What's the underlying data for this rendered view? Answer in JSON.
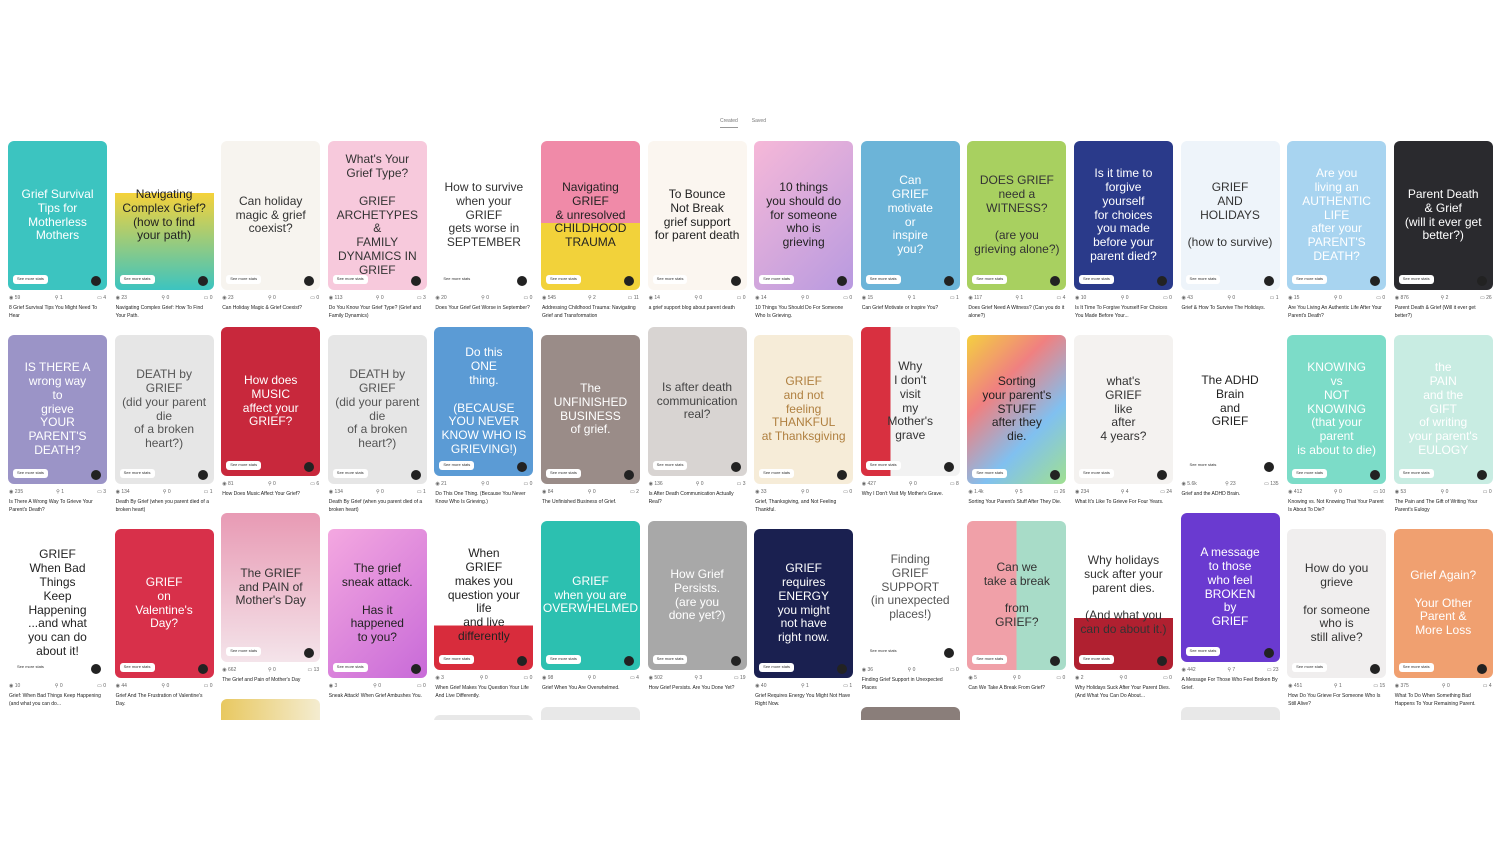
{
  "tabs": [
    {
      "label": "Created",
      "active": true
    },
    {
      "label": "Saved",
      "active": false
    }
  ],
  "see_more_label": "See more stats",
  "icons": {
    "views": "eye-icon",
    "saves": "pin-icon",
    "comments": "comment-icon"
  },
  "columns": [
    [
      {
        "img": "Grief Survival\nTips for\nMotherless Mothers",
        "bg": "#3cc4c0",
        "fg": "#fff",
        "views": "59",
        "saves": "1",
        "comments": "4",
        "title": "8 Grief Survival Tips You Might Need To Hear"
      },
      {
        "img": "IS THERE A\nwrong way\nto\ngrieve\nYOUR PARENT'S DEATH?",
        "bg": "#9b94c7",
        "fg": "#fff",
        "views": "235",
        "saves": "1",
        "comments": "3",
        "title": "Is There A Wrong Way To Grieve Your Parent's Death?"
      },
      {
        "img": "GRIEF\nWhen Bad Things\nKeep Happening\n...and what\nyou can do\nabout it!",
        "bg": "#ffffff",
        "fg": "#222",
        "views": "10",
        "saves": "0",
        "comments": "0",
        "title": "Grief: When Bad Things Keep Happening (and what you can do..."
      }
    ],
    [
      {
        "img": "Navigating\nComplex Grief?\n(how to find your path)",
        "bg": "linear-gradient(180deg,#fff 35%,#f5d23a 35%,#3cc4c0)",
        "fg": "#222",
        "views": "23",
        "saves": "0",
        "comments": "0",
        "title": "Navigating Complex Grief: How To Find Your Path."
      },
      {
        "img": "DEATH by\nGRIEF\n(did your parent die\nof a broken heart?)",
        "bg": "#e6e6e6",
        "fg": "#555",
        "views": "134",
        "saves": "0",
        "comments": "1",
        "title": "Death By Grief (when you parent died of a broken heart)"
      },
      {
        "img": "GRIEF\non\nValentine's\nDay?",
        "bg": "#d8304a",
        "fg": "#fff",
        "views": "44",
        "saves": "0",
        "comments": "0",
        "title": "Grief And The Frustration of Valentine's Day."
      }
    ],
    [
      {
        "img": "Can holiday\nmagic & grief\ncoexist?",
        "bg": "#f7f4ef",
        "fg": "#333",
        "views": "23",
        "saves": "0",
        "comments": "0",
        "title": "Can Holiday Magic & Grief Coexist?"
      },
      {
        "img": "How does\nMUSIC\naffect your\nGRIEF?",
        "bg": "#c8283c",
        "fg": "#fff",
        "views": "81",
        "saves": "0",
        "comments": "6",
        "title": "How Does Music Affect Your Grief?"
      },
      {
        "img": "The GRIEF\nand PAIN of\nMother's Day",
        "bg": "linear-gradient(180deg,#e89ab4,#f4e4ea)",
        "fg": "#333",
        "views": "662",
        "saves": "0",
        "comments": "13",
        "title": "The Grief and Pain of Mother's Day"
      },
      {
        "img": "",
        "bg": "linear-gradient(90deg,#e8c860,#f4ecd0)",
        "fg": "#333"
      }
    ],
    [
      {
        "img": "What's Your\nGrief Type?\n\nGRIEF ARCHETYPES &\nFAMILY DYNAMICS IN GRIEF",
        "bg": "#f7c9dc",
        "fg": "#333",
        "views": "113",
        "saves": "0",
        "comments": "3",
        "title": "Do You Know Your Grief Type? (Grief and Family Dynamics)"
      },
      {
        "img": "DEATH by\nGRIEF\n(did your parent die\nof a broken heart?)",
        "bg": "#e6e6e6",
        "fg": "#555",
        "views": "134",
        "saves": "0",
        "comments": "1",
        "title": "Death By Grief (when you parent died of a broken heart)"
      },
      {
        "img": "The grief\nsneak attack.\n\nHas it happened\nto you?",
        "bg": "linear-gradient(135deg,#f4a8e0,#c86ad8)",
        "fg": "#222",
        "views": "3",
        "saves": "0",
        "comments": "0",
        "title": "Sneak Attack! When Grief Ambushes You."
      }
    ],
    [
      {
        "img": "How to survive\nwhen your\nGRIEF\ngets worse in\nSEPTEMBER",
        "bg": "#ffffff",
        "fg": "#333",
        "views": "20",
        "saves": "0",
        "comments": "0",
        "title": "Does Your Grief Get Worse in September?"
      },
      {
        "img": "Do this\nONE\nthing.\n\n(BECAUSE YOU NEVER\nKNOW WHO IS GRIEVING!)",
        "bg": "#5b9bd5",
        "fg": "#fff",
        "views": "21",
        "saves": "0",
        "comments": "0",
        "title": "Do This One Thing. (Because You Never Know Who Is Grieving.)"
      },
      {
        "img": "When\nGRIEF\nmakes you\nquestion your life\nand live\ndifferently",
        "bg": "linear-gradient(180deg,#fff 70%,#d82c3c 70%)",
        "fg": "#222",
        "views": "3",
        "saves": "0",
        "comments": "0",
        "title": "When Grief Makes You Question Your Life And Live Differently."
      },
      {
        "img": "",
        "bg": "#e8e8e8",
        "fg": "#333"
      }
    ],
    [
      {
        "img": "Navigating\nGRIEF\n& unresolved\nCHILDHOOD\nTRAUMA",
        "bg": "linear-gradient(180deg,#f08aa8 55%,#f2d23a 55%)",
        "fg": "#222",
        "views": "545",
        "saves": "2",
        "comments": "11",
        "title": "Addressing Childhood Trauma: Navigating Grief and Transformation"
      },
      {
        "img": "The\nUNFINISHED\nBUSINESS\nof grief.",
        "bg": "#9a8c88",
        "fg": "#fff",
        "views": "84",
        "saves": "0",
        "comments": "2",
        "title": "The Unfinished Business of Grief."
      },
      {
        "img": "GRIEF\nwhen you are\nOVERWHELMED",
        "bg": "#2cc0b0",
        "fg": "#fff",
        "views": "98",
        "saves": "0",
        "comments": "4",
        "title": "Grief When You Are Overwhelmed."
      },
      {
        "img": "",
        "bg": "#e8e8e8",
        "fg": "#333"
      }
    ],
    [
      {
        "img": "To Bounce\nNot Break\ngrief support\nfor parent death",
        "bg": "#fbf6f0",
        "fg": "#222",
        "views": "14",
        "saves": "0",
        "comments": "0",
        "title": "a grief support blog about parent death"
      },
      {
        "img": "Is after death\ncommunication\nreal?",
        "bg": "#d8d4d2",
        "fg": "#444",
        "views": "136",
        "saves": "0",
        "comments": "3",
        "title": "Is After Death Communication Actually Real?"
      },
      {
        "img": "How Grief\nPersists.\n(are you\ndone yet?)",
        "bg": "#a8a8a8",
        "fg": "#fff",
        "views": "502",
        "saves": "3",
        "comments": "19",
        "title": "How Grief Persists. Are You Done Yet?"
      }
    ],
    [
      {
        "img": "10 things\nyou should do\nfor someone\nwho is\ngrieving",
        "bg": "linear-gradient(135deg,#f6b8d8,#b89ae0)",
        "fg": "#222",
        "views": "14",
        "saves": "0",
        "comments": "0",
        "title": "10 Things You Should Do For Someone Who Is Grieving."
      },
      {
        "img": "GRIEF\nand not\nfeeling\nTHANKFUL\nat Thanksgiving",
        "bg": "#f6ecd8",
        "fg": "#b08040",
        "views": "33",
        "saves": "0",
        "comments": "0",
        "title": "Grief, Thanksgiving, and Not Feeling Thankful."
      },
      {
        "img": "GRIEF\nrequires\nENERGY\nyou might\nnot have\nright now.",
        "bg": "#1a2050",
        "fg": "#fff",
        "views": "40",
        "saves": "1",
        "comments": "1",
        "title": "Grief Requires Energy You Might Not Have Right Now."
      }
    ],
    [
      {
        "img": "Can\nGRIEF\nmotivate\nor\ninspire\nyou?",
        "bg": "#6cb4d8",
        "fg": "#fff",
        "views": "15",
        "saves": "1",
        "comments": "1",
        "title": "Can Grief Motivate or Inspire You?"
      },
      {
        "img": "Why\nI don't\nvisit\nmy\nMother's\ngrave",
        "bg": "linear-gradient(90deg,#d83040 30%,#f2f2f2 30%)",
        "fg": "#333",
        "views": "427",
        "saves": "0",
        "comments": "8",
        "title": "Why I Don't Visit My Mother's Grave."
      },
      {
        "img": "Finding\nGRIEF\nSUPPORT\n(in unexpected\nplaces!)",
        "bg": "#ffffff",
        "fg": "#555",
        "views": "36",
        "saves": "0",
        "comments": "0",
        "title": "Finding Grief Support in Unexpected Places"
      },
      {
        "img": "",
        "bg": "#8a7e7a",
        "fg": "#fff"
      }
    ],
    [
      {
        "img": "DOES GRIEF\nneed a\nWITNESS?\n\n(are you grieving alone?)",
        "bg": "#a8d060",
        "fg": "#333",
        "views": "117",
        "saves": "1",
        "comments": "4",
        "title": "Does Grief Need A Witness? (Can you do it alone?)"
      },
      {
        "img": "Sorting\nyour parent's\nSTUFF\nafter they\ndie.",
        "bg": "linear-gradient(135deg,#f4d040,#f08080,#80c0f0,#a0e090)",
        "fg": "#222",
        "views": "1.4k",
        "saves": "5",
        "comments": "26",
        "title": "Sorting Your Parent's Stuff After They Die."
      },
      {
        "img": "Can we\ntake a break\n\nfrom\nGRIEF?",
        "bg": "linear-gradient(90deg,#f0a0a8 50%,#a8dcc8 50%)",
        "fg": "#333",
        "views": "5",
        "saves": "0",
        "comments": "0",
        "title": "Can We Take A Break From Grief?"
      }
    ],
    [
      {
        "img": "Is it time to\nforgive\nyourself\nfor choices\nyou made\nbefore your\nparent died?",
        "bg": "#2a3a8a",
        "fg": "#fff",
        "views": "10",
        "saves": "0",
        "comments": "0",
        "title": "Is It Time To Forgive Yourself For Choices You Made Before Your..."
      },
      {
        "img": "what's\nGRIEF\nlike\nafter\n4 years?",
        "bg": "#f4f2f0",
        "fg": "#333",
        "views": "234",
        "saves": "4",
        "comments": "24",
        "title": "What It's Like To Grieve For Four Years."
      },
      {
        "img": "Why holidays\nsuck after your\nparent dies.\n\n(And what you\ncan do about it.)",
        "bg": "linear-gradient(180deg,#fff 65%,#b02030 65%)",
        "fg": "#333",
        "views": "2",
        "saves": "0",
        "comments": "0",
        "title": "Why Holidays Suck After Your Parent Dies. (And What You Can Do About..."
      }
    ],
    [
      {
        "img": "GRIEF\nAND\nHOLIDAYS\n\n(how to survive)",
        "bg": "#eef4fa",
        "fg": "#333",
        "views": "43",
        "saves": "0",
        "comments": "1",
        "title": "Grief & How To Survive The Holidays."
      },
      {
        "img": "The ADHD Brain\nand\nGRIEF",
        "bg": "#ffffff",
        "fg": "#222",
        "views": "5.6k",
        "saves": "23",
        "comments": "135",
        "title": "Grief and the ADHD Brain."
      },
      {
        "img": "A message\nto those\nwho feel\nBROKEN\nby\nGRIEF",
        "bg": "#6a3ad0",
        "fg": "#fff",
        "views": "442",
        "saves": "7",
        "comments": "23",
        "title": "A Message For Those Who Feel Broken By Grief."
      },
      {
        "img": "",
        "bg": "#e8e8e8",
        "fg": "#333"
      }
    ],
    [
      {
        "img": "Are you\nliving an\nAUTHENTIC\nLIFE\nafter your\nPARENT'S\nDEATH?",
        "bg": "#a8d4f0",
        "fg": "#fff",
        "views": "15",
        "saves": "0",
        "comments": "0",
        "title": "Are You Living An Authentic Life After Your Parent's Death?"
      },
      {
        "img": "KNOWING\nvs\nNOT KNOWING\n(that your parent\nis about to die)",
        "bg": "#7cdcc8",
        "fg": "#fff",
        "views": "412",
        "saves": "0",
        "comments": "10",
        "title": "Knowing vs. Not Knowing That Your Parent Is About To Die?"
      },
      {
        "img": "How do you\ngrieve\n\nfor someone\nwho is\nstill alive?",
        "bg": "#f0eeee",
        "fg": "#333",
        "views": "451",
        "saves": "1",
        "comments": "15",
        "title": "How Do You Grieve For Someone Who Is Still Alive?"
      }
    ],
    [
      {
        "img": "Parent Death\n& Grief\n(will it ever get better?)",
        "bg": "#2a2a2e",
        "fg": "#fff",
        "views": "876",
        "saves": "2",
        "comments": "26",
        "title": "Parent Death & Grief (Will it ever get better?)"
      },
      {
        "img": "the\nPAIN\nand the\nGIFT\nof writing\nyour parent's\nEULOGY",
        "bg": "#c8ece2",
        "fg": "#fff",
        "views": "53",
        "saves": "0",
        "comments": "0",
        "title": "The Pain and The Gift of Writing Your Parent's Eulogy"
      },
      {
        "img": "Grief Again?\n\nYour Other\nParent &\nMore Loss",
        "bg": "#f0a070",
        "fg": "#fff",
        "views": "375",
        "saves": "0",
        "comments": "4",
        "title": "What To Do When Something Bad Happens To Your Remaining Parent."
      }
    ]
  ]
}
